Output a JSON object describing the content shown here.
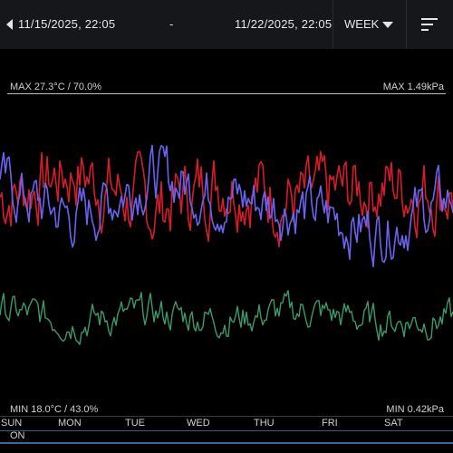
{
  "header": {
    "start_datetime": "11/15/2025, 22:05",
    "separator": "-",
    "end_datetime": "11/22/2025, 22:05",
    "range_label": "WEEK",
    "icons": {
      "prev": "caret-left-icon",
      "range": "caret-down-icon",
      "menu": "sort-lines-icon"
    }
  },
  "scale": {
    "max_temp_hum": "MAX 27.3°C / 70.0%",
    "max_pressure": "MAX 1.49kPa",
    "min_temp_hum": "MIN 18.0°C / 43.0%",
    "min_pressure": "MIN 0.42kPa"
  },
  "days": [
    "SUN",
    "MON",
    "TUE",
    "WED",
    "THU",
    "FRI",
    "SAT"
  ],
  "status": "ON",
  "colors": {
    "temperature": "#d61c2a",
    "humidity": "#6a63f0",
    "pressure": "#3a9a6a",
    "accent": "#2e6ea6"
  },
  "chart_data": {
    "type": "line",
    "x": [
      "SUN",
      "MON",
      "TUE",
      "WED",
      "THU",
      "FRI",
      "SAT"
    ],
    "series": [
      {
        "values": [
          24.2,
          25.0,
          23.8,
          24.8,
          24.0,
          24.6,
          24.4
        ]
      },
      {
        "values": [
          62.0,
          59.0,
          63.0,
          61.0,
          60.0,
          58.0,
          61.0
        ]
      },
      {
        "values": [
          0.74,
          0.7,
          0.73,
          0.71,
          0.74,
          0.7,
          0.71
        ]
      }
    ]
  }
}
